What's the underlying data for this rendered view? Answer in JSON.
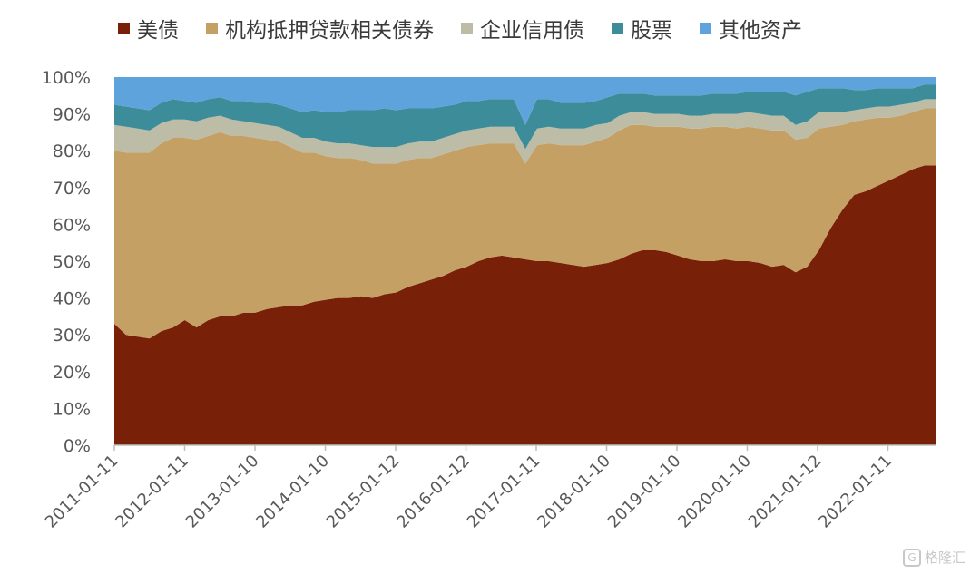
{
  "legend": [
    {
      "name": "美债",
      "color": "#782008"
    },
    {
      "name": "机构抵押贷款相关债券",
      "color": "#C5A064"
    },
    {
      "name": "企业信用债",
      "color": "#BDBCA6"
    },
    {
      "name": "股票",
      "color": "#3C8C9A"
    },
    {
      "name": "其他资产",
      "color": "#5EA3DC"
    }
  ],
  "watermark": {
    "text": "格隆汇",
    "icon": "g-logo-icon"
  },
  "chart_data": {
    "type": "area",
    "stacked": true,
    "ylim": [
      0,
      100
    ],
    "yticks": [
      "0%",
      "10%",
      "20%",
      "30%",
      "40%",
      "50%",
      "60%",
      "70%",
      "80%",
      "90%",
      "100%"
    ],
    "xticks": [
      "2011-01-11",
      "2012-01-11",
      "2013-01-10",
      "2014-01-10",
      "2015-01-12",
      "2016-01-12",
      "2017-01-11",
      "2018-01-10",
      "2019-01-10",
      "2020-01-10",
      "2021-01-12",
      "2022-01-11"
    ],
    "x": [
      "2011-01",
      "2011-03",
      "2011-05",
      "2011-07",
      "2011-09",
      "2011-11",
      "2012-01",
      "2012-03",
      "2012-05",
      "2012-07",
      "2012-09",
      "2012-11",
      "2013-01",
      "2013-03",
      "2013-05",
      "2013-07",
      "2013-09",
      "2013-11",
      "2014-01",
      "2014-03",
      "2014-05",
      "2014-07",
      "2014-09",
      "2014-11",
      "2015-01",
      "2015-03",
      "2015-05",
      "2015-07",
      "2015-09",
      "2015-11",
      "2016-01",
      "2016-03",
      "2016-05",
      "2016-07",
      "2016-09",
      "2016-11",
      "2017-01",
      "2017-03",
      "2017-05",
      "2017-07",
      "2017-09",
      "2017-11",
      "2018-01",
      "2018-03",
      "2018-05",
      "2018-07",
      "2018-09",
      "2018-11",
      "2019-01",
      "2019-03",
      "2019-05",
      "2019-07",
      "2019-09",
      "2019-11",
      "2020-01",
      "2020-03",
      "2020-05",
      "2020-07",
      "2020-09",
      "2020-11",
      "2021-01",
      "2021-03",
      "2021-05",
      "2021-07",
      "2021-09",
      "2021-11",
      "2022-01",
      "2022-03",
      "2022-05",
      "2022-07",
      "2022-09"
    ],
    "series": [
      {
        "name": "美债",
        "color": "#782008",
        "values": [
          33,
          30,
          29.5,
          29,
          31,
          32,
          34,
          32,
          34,
          35,
          35,
          36,
          36,
          37,
          37.5,
          38,
          38,
          39,
          39.5,
          40,
          40,
          40.5,
          40,
          41,
          41.5,
          43,
          44,
          45,
          46,
          47.5,
          48.5,
          50,
          51,
          51.5,
          51,
          50.5,
          50,
          50,
          49.5,
          49,
          48.5,
          49,
          49.5,
          50.5,
          52,
          53,
          53,
          52.5,
          51.5,
          50.5,
          50,
          50,
          50.5,
          50,
          50,
          49.5,
          48.5,
          49,
          47,
          48.5,
          53,
          59,
          64,
          68,
          69,
          70.5,
          72,
          73.5,
          75,
          76,
          76
        ]
      },
      {
        "name": "机构抵押贷款相关债券",
        "color": "#C5A064",
        "values": [
          47,
          49.5,
          50,
          50.5,
          51,
          51.5,
          49.5,
          51,
          50,
          50,
          49,
          48,
          47.5,
          46,
          45,
          43,
          41.5,
          40.5,
          39,
          38,
          38,
          37,
          36.5,
          35.5,
          35,
          34.5,
          34,
          33,
          33,
          32.5,
          32.5,
          31.5,
          31,
          30.5,
          31,
          26,
          31.5,
          32,
          32,
          32.5,
          33,
          33.5,
          34,
          35,
          35,
          34,
          33.5,
          34,
          35,
          35.5,
          36,
          36.5,
          36,
          36,
          36.5,
          36.5,
          37,
          36.5,
          36,
          35,
          33,
          27.5,
          23,
          20,
          19.5,
          18.5,
          17,
          16,
          15.5,
          15.5,
          15.5
        ]
      },
      {
        "name": "企业信用债",
        "color": "#BDBCA6",
        "values": [
          7,
          7,
          6.5,
          6,
          5.5,
          5,
          5,
          5,
          5,
          4.5,
          4.5,
          4,
          4,
          4,
          4,
          4,
          4,
          4,
          4,
          4,
          4,
          4,
          4.5,
          4.5,
          4.5,
          4.5,
          4.5,
          4.5,
          4.5,
          4.5,
          4.5,
          4.5,
          4.5,
          4.5,
          4.5,
          4,
          4.5,
          4.5,
          4.5,
          4.5,
          4.5,
          4.5,
          4,
          4,
          3.5,
          3.5,
          3.5,
          3.5,
          3.5,
          3.5,
          3.5,
          3.5,
          3.5,
          4,
          4,
          4,
          4,
          4,
          4,
          4.5,
          4.5,
          4,
          3.5,
          3,
          3,
          3,
          3,
          3,
          2.5,
          2.5,
          2.5
        ]
      },
      {
        "name": "股票",
        "color": "#3C8C9A",
        "values": [
          5.5,
          5.5,
          5.5,
          5.5,
          5.5,
          5.5,
          5,
          5,
          5,
          5,
          5,
          5.5,
          5.5,
          6,
          6,
          6.5,
          7,
          7.5,
          8,
          8.5,
          9,
          9.5,
          10,
          10.5,
          10,
          9.5,
          9,
          9,
          8.5,
          8,
          8,
          7.5,
          7.5,
          7.5,
          7.5,
          6.5,
          8,
          7.5,
          7,
          7,
          7,
          6.5,
          7,
          6,
          5,
          5,
          5,
          5,
          5,
          5.5,
          5.5,
          5.5,
          5.5,
          5.5,
          5.5,
          6,
          6.5,
          6.5,
          8,
          8,
          6.5,
          6.5,
          6.5,
          5.5,
          5,
          5,
          5,
          4.5,
          4,
          4,
          4
        ]
      },
      {
        "name": "其他资产",
        "color": "#5EA3DC",
        "values": [
          7.5,
          8,
          8.5,
          9,
          7,
          6,
          6.5,
          7,
          6,
          5.5,
          6.5,
          6.5,
          7,
          7,
          7.5,
          8.5,
          9.5,
          9,
          9.5,
          9.5,
          9,
          9,
          9,
          8.5,
          9,
          8.5,
          8.5,
          8.5,
          8,
          7.5,
          6.5,
          6.5,
          6,
          6,
          6,
          13,
          6,
          6,
          7,
          7,
          7,
          6.5,
          5.5,
          4.5,
          4.5,
          4.5,
          5,
          5,
          5,
          5,
          5,
          4.5,
          4.5,
          4.5,
          4,
          4,
          4,
          4,
          5,
          4,
          3,
          3,
          3,
          3.5,
          3.5,
          3,
          3,
          3,
          3,
          2,
          2
        ]
      }
    ]
  }
}
